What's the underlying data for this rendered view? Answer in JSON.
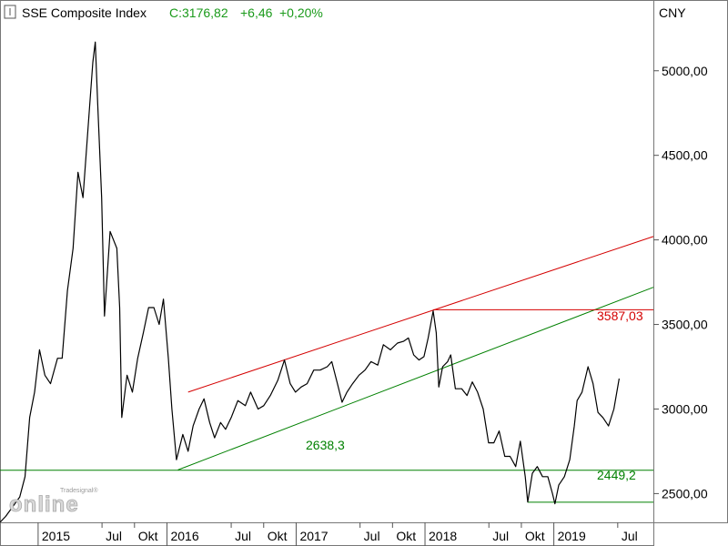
{
  "chart_data": {
    "type": "line",
    "title": "SSE Composite Index",
    "quote": {
      "close": "C:3176,82",
      "change": "+6,46",
      "change_pct": "+0,20%"
    },
    "currency": "CNY",
    "ylim": [
      2330,
      5300
    ],
    "y_ticks": [
      2500,
      3000,
      3500,
      4000,
      4500,
      5000
    ],
    "y_tick_labels": [
      "2500,00",
      "3000,00",
      "3500,00",
      "4000,00",
      "4500,00",
      "5000,00"
    ],
    "xlim": [
      "2014-09-15",
      "2019-10-10"
    ],
    "x_ticks": [
      {
        "date": "2015-01-01",
        "label": "2015",
        "major": true
      },
      {
        "date": "2015-07-01",
        "label": "Jul",
        "major": false
      },
      {
        "date": "2015-10-01",
        "label": "Okt",
        "major": false
      },
      {
        "date": "2016-01-01",
        "label": "2016",
        "major": true
      },
      {
        "date": "2016-07-01",
        "label": "Jul",
        "major": false
      },
      {
        "date": "2016-10-01",
        "label": "Okt",
        "major": false
      },
      {
        "date": "2017-01-01",
        "label": "2017",
        "major": true
      },
      {
        "date": "2017-07-01",
        "label": "Jul",
        "major": false
      },
      {
        "date": "2017-10-01",
        "label": "Okt",
        "major": false
      },
      {
        "date": "2018-01-01",
        "label": "2018",
        "major": true
      },
      {
        "date": "2018-07-01",
        "label": "Jul",
        "major": false
      },
      {
        "date": "2018-10-01",
        "label": "Okt",
        "major": false
      },
      {
        "date": "2019-01-01",
        "label": "2019",
        "major": true
      },
      {
        "date": "2019-07-01",
        "label": "Jul",
        "major": false
      }
    ],
    "series": [
      {
        "color": "#000000",
        "points": [
          [
            "2014-09-15",
            2330
          ],
          [
            "2014-10-01",
            2365
          ],
          [
            "2014-10-20",
            2420
          ],
          [
            "2014-11-10",
            2480
          ],
          [
            "2014-11-25",
            2600
          ],
          [
            "2014-12-08",
            2950
          ],
          [
            "2014-12-22",
            3100
          ],
          [
            "2015-01-05",
            3350
          ],
          [
            "2015-01-20",
            3200
          ],
          [
            "2015-02-05",
            3150
          ],
          [
            "2015-02-25",
            3300
          ],
          [
            "2015-03-10",
            3300
          ],
          [
            "2015-03-25",
            3700
          ],
          [
            "2015-04-10",
            3950
          ],
          [
            "2015-04-24",
            4400
          ],
          [
            "2015-05-08",
            4250
          ],
          [
            "2015-05-22",
            4650
          ],
          [
            "2015-06-05",
            5050
          ],
          [
            "2015-06-12",
            5170
          ],
          [
            "2015-06-19",
            4800
          ],
          [
            "2015-06-30",
            4250
          ],
          [
            "2015-07-08",
            3550
          ],
          [
            "2015-07-24",
            4050
          ],
          [
            "2015-08-12",
            3950
          ],
          [
            "2015-08-20",
            3600
          ],
          [
            "2015-08-26",
            2950
          ],
          [
            "2015-09-10",
            3200
          ],
          [
            "2015-09-25",
            3100
          ],
          [
            "2015-10-10",
            3300
          ],
          [
            "2015-10-26",
            3450
          ],
          [
            "2015-11-10",
            3600
          ],
          [
            "2015-11-25",
            3600
          ],
          [
            "2015-12-10",
            3500
          ],
          [
            "2015-12-22",
            3650
          ],
          [
            "2016-01-05",
            3300
          ],
          [
            "2016-01-15",
            3000
          ],
          [
            "2016-01-28",
            2700
          ],
          [
            "2016-02-15",
            2850
          ],
          [
            "2016-03-01",
            2750
          ],
          [
            "2016-03-15",
            2900
          ],
          [
            "2016-04-01",
            3000
          ],
          [
            "2016-04-15",
            3060
          ],
          [
            "2016-05-01",
            2920
          ],
          [
            "2016-05-15",
            2830
          ],
          [
            "2016-06-01",
            2920
          ],
          [
            "2016-06-15",
            2880
          ],
          [
            "2016-07-01",
            2950
          ],
          [
            "2016-07-20",
            3050
          ],
          [
            "2016-08-10",
            3020
          ],
          [
            "2016-08-25",
            3100
          ],
          [
            "2016-09-15",
            3000
          ],
          [
            "2016-10-01",
            3020
          ],
          [
            "2016-10-20",
            3080
          ],
          [
            "2016-11-10",
            3170
          ],
          [
            "2016-11-29",
            3290
          ],
          [
            "2016-12-15",
            3150
          ],
          [
            "2016-12-30",
            3100
          ],
          [
            "2017-01-15",
            3130
          ],
          [
            "2017-02-01",
            3150
          ],
          [
            "2017-02-20",
            3230
          ],
          [
            "2017-03-10",
            3230
          ],
          [
            "2017-03-30",
            3250
          ],
          [
            "2017-04-12",
            3280
          ],
          [
            "2017-04-28",
            3150
          ],
          [
            "2017-05-11",
            3040
          ],
          [
            "2017-05-25",
            3100
          ],
          [
            "2017-06-10",
            3150
          ],
          [
            "2017-06-28",
            3200
          ],
          [
            "2017-07-15",
            3230
          ],
          [
            "2017-08-01",
            3280
          ],
          [
            "2017-08-20",
            3260
          ],
          [
            "2017-09-05",
            3380
          ],
          [
            "2017-09-25",
            3350
          ],
          [
            "2017-10-15",
            3390
          ],
          [
            "2017-11-01",
            3400
          ],
          [
            "2017-11-15",
            3420
          ],
          [
            "2017-11-30",
            3320
          ],
          [
            "2017-12-15",
            3290
          ],
          [
            "2017-12-29",
            3310
          ],
          [
            "2018-01-10",
            3420
          ],
          [
            "2018-01-24",
            3580
          ],
          [
            "2018-02-02",
            3450
          ],
          [
            "2018-02-09",
            3130
          ],
          [
            "2018-02-20",
            3250
          ],
          [
            "2018-03-06",
            3280
          ],
          [
            "2018-03-15",
            3320
          ],
          [
            "2018-03-28",
            3120
          ],
          [
            "2018-04-15",
            3120
          ],
          [
            "2018-04-30",
            3080
          ],
          [
            "2018-05-15",
            3160
          ],
          [
            "2018-05-30",
            3100
          ],
          [
            "2018-06-15",
            3000
          ],
          [
            "2018-06-30",
            2800
          ],
          [
            "2018-07-15",
            2800
          ],
          [
            "2018-07-30",
            2870
          ],
          [
            "2018-08-15",
            2720
          ],
          [
            "2018-08-30",
            2720
          ],
          [
            "2018-09-15",
            2660
          ],
          [
            "2018-09-28",
            2810
          ],
          [
            "2018-10-12",
            2600
          ],
          [
            "2018-10-19",
            2450
          ],
          [
            "2018-11-01",
            2620
          ],
          [
            "2018-11-15",
            2660
          ],
          [
            "2018-11-30",
            2600
          ],
          [
            "2018-12-15",
            2600
          ],
          [
            "2018-12-28",
            2500
          ],
          [
            "2019-01-04",
            2440
          ],
          [
            "2019-01-15",
            2550
          ],
          [
            "2019-01-31",
            2600
          ],
          [
            "2019-02-15",
            2700
          ],
          [
            "2019-02-28",
            2900
          ],
          [
            "2019-03-08",
            3050
          ],
          [
            "2019-03-22",
            3100
          ],
          [
            "2019-04-08",
            3250
          ],
          [
            "2019-04-22",
            3150
          ],
          [
            "2019-05-06",
            2980
          ],
          [
            "2019-05-20",
            2950
          ],
          [
            "2019-06-05",
            2900
          ],
          [
            "2019-06-20",
            3000
          ],
          [
            "2019-07-05",
            3180
          ]
        ]
      }
    ],
    "annotations": [
      {
        "type": "trendline",
        "color": "#d40000",
        "from": [
          "2016-03-01",
          3100
        ],
        "to": [
          "2019-10-10",
          4020
        ]
      },
      {
        "type": "trendline",
        "color": "#008000",
        "from": [
          "2016-02-01",
          2640
        ],
        "to": [
          "2019-10-10",
          3720
        ]
      },
      {
        "type": "hline",
        "color": "#d40000",
        "value": 3587.03,
        "from": "2018-01-24",
        "label": "3587,03"
      },
      {
        "type": "hline",
        "color": "#008000",
        "value": 2638.3,
        "from": "2014-09-15",
        "label": "2638,3"
      },
      {
        "type": "hline",
        "color": "#008000",
        "value": 2449.2,
        "from": "2018-10-19",
        "label": "2449,2"
      }
    ],
    "level_labels": {
      "red_resistance": "3587,03",
      "green_support": "2638,3",
      "green_low": "2449,2"
    },
    "grid": false,
    "legend": "none"
  },
  "branding": {
    "maker": "Tradesignal®",
    "product": "online"
  },
  "colors": {
    "price": "#000000",
    "positive": "#1a9a1a",
    "resistance": "#d40000",
    "support": "#008000",
    "axis": "#555555"
  }
}
